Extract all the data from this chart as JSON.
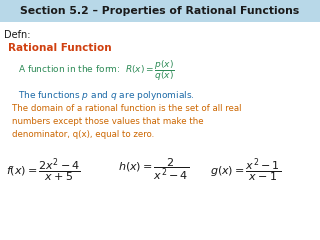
{
  "title": "Section 5.2 – Properties of Rational Functions",
  "title_bg": "#b8d8e8",
  "title_color": "#1a1a1a",
  "defn_label": "Defn:",
  "red_label": "Rational Function",
  "red_color": "#d04010",
  "green_color": "#2e8b57",
  "blue_color": "#1e6ba8",
  "orange_color": "#cc6600",
  "black_color": "#1a1a1a",
  "formula_color": "#1a1a1a",
  "bg_color": "#ffffff"
}
